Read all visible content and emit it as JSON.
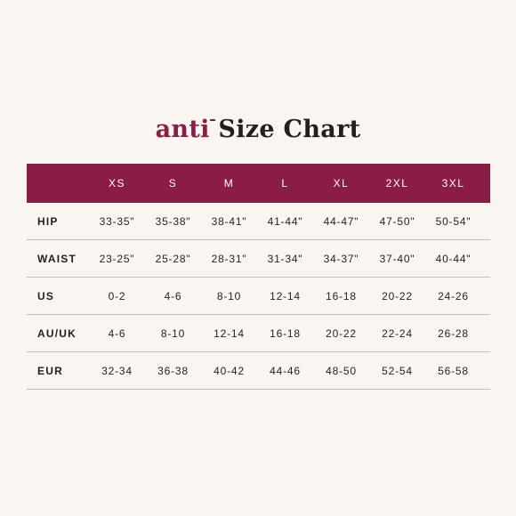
{
  "title": {
    "brand": "anti",
    "text": "Size Chart"
  },
  "colors": {
    "accent": "#8a1c45",
    "background": "#f9f5f0",
    "divider": "#cfb8bf"
  },
  "table": {
    "headers": [
      "XS",
      "S",
      "M",
      "L",
      "XL",
      "2XL",
      "3XL"
    ],
    "rows": [
      {
        "label": "HIP",
        "values": [
          "33-35\"",
          "35-38\"",
          "38-41\"",
          "41-44\"",
          "44-47\"",
          "47-50\"",
          "50-54\""
        ]
      },
      {
        "label": "WAIST",
        "values": [
          "23-25\"",
          "25-28\"",
          "28-31\"",
          "31-34\"",
          "34-37\"",
          "37-40\"",
          "40-44\""
        ]
      },
      {
        "label": "US",
        "values": [
          "0-2",
          "4-6",
          "8-10",
          "12-14",
          "16-18",
          "20-22",
          "24-26"
        ]
      },
      {
        "label": "AU/UK",
        "values": [
          "4-6",
          "8-10",
          "12-14",
          "16-18",
          "20-22",
          "22-24",
          "26-28"
        ]
      },
      {
        "label": "EUR",
        "values": [
          "32-34",
          "36-38",
          "40-42",
          "44-46",
          "48-50",
          "52-54",
          "56-58"
        ]
      }
    ]
  }
}
